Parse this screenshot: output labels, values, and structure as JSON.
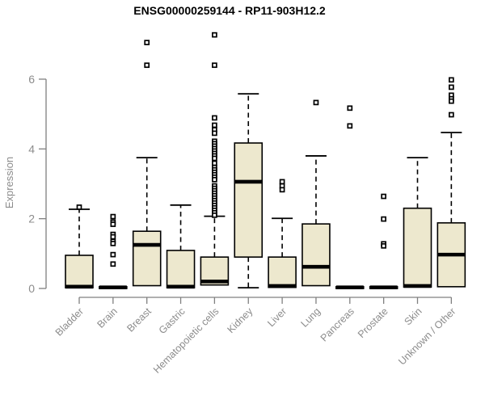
{
  "chart_data": {
    "type": "boxplot",
    "title": "ENSG00000259144 - RP11-903H12.2",
    "ylabel": "Expression",
    "xlabel": "",
    "ylim": [
      0,
      6
    ],
    "yticks": [
      0,
      2,
      4,
      6
    ],
    "grid": false,
    "legend": "none",
    "categories": [
      "Bladder",
      "Brain",
      "Breast",
      "Gastric",
      "Hematopoietic cells",
      "Kidney",
      "Liver",
      "Lung",
      "Pancreas",
      "Prostate",
      "Skin",
      "Unknown / Other"
    ],
    "series": [
      {
        "name": "Bladder",
        "q1": 0.02,
        "median": 0.05,
        "q3": 0.95,
        "whisker_low": 0.02,
        "whisker_high": 2.27,
        "outliers": [
          2.33
        ]
      },
      {
        "name": "Brain",
        "q1": 0.0,
        "median": 0.03,
        "q3": 0.05,
        "whisker_low": 0.0,
        "whisker_high": 0.05,
        "outliers": [
          2.06,
          1.9,
          1.84,
          1.55,
          1.48,
          1.35,
          1.29,
          0.97,
          0.7
        ]
      },
      {
        "name": "Breast",
        "q1": 0.08,
        "median": 1.25,
        "q3": 1.64,
        "whisker_low": 0.08,
        "whisker_high": 3.75,
        "outliers": [
          7.05,
          6.4
        ]
      },
      {
        "name": "Gastric",
        "q1": 0.02,
        "median": 0.05,
        "q3": 1.09,
        "whisker_low": 0.02,
        "whisker_high": 2.39,
        "outliers": []
      },
      {
        "name": "Hematopoietic cells",
        "q1": 0.1,
        "median": 0.2,
        "q3": 0.9,
        "whisker_low": 0.1,
        "whisker_high": 2.07,
        "outliers": [
          7.27,
          6.4,
          4.89,
          4.68,
          4.55,
          4.45,
          4.22,
          4.15,
          4.08,
          4.01,
          3.94,
          3.87,
          3.8,
          3.73,
          3.59,
          3.47,
          3.4,
          3.33,
          3.26,
          3.19,
          3.12,
          2.94,
          2.87,
          2.8,
          2.73,
          2.66,
          2.59,
          2.52,
          2.45,
          2.38,
          2.31,
          2.24,
          2.17,
          2.1
        ]
      },
      {
        "name": "Kidney",
        "q1": 0.9,
        "median": 3.06,
        "q3": 4.17,
        "whisker_low": 0.02,
        "whisker_high": 5.58,
        "outliers": []
      },
      {
        "name": "Liver",
        "q1": 0.03,
        "median": 0.07,
        "q3": 0.9,
        "whisker_low": 0.03,
        "whisker_high": 2.01,
        "outliers": [
          3.06,
          2.94,
          2.83
        ]
      },
      {
        "name": "Lung",
        "q1": 0.08,
        "median": 0.62,
        "q3": 1.85,
        "whisker_low": 0.08,
        "whisker_high": 3.8,
        "outliers": [
          5.33
        ]
      },
      {
        "name": "Pancreas",
        "q1": 0.0,
        "median": 0.03,
        "q3": 0.05,
        "whisker_low": 0.0,
        "whisker_high": 0.05,
        "outliers": [
          5.17,
          4.66
        ]
      },
      {
        "name": "Prostate",
        "q1": 0.0,
        "median": 0.03,
        "q3": 0.05,
        "whisker_low": 0.0,
        "whisker_high": 0.05,
        "outliers": [
          2.64,
          1.99,
          1.28,
          1.22
        ]
      },
      {
        "name": "Skin",
        "q1": 0.04,
        "median": 0.07,
        "q3": 2.3,
        "whisker_low": 0.04,
        "whisker_high": 3.75,
        "outliers": []
      },
      {
        "name": "Unknown / Other",
        "q1": 0.05,
        "median": 0.97,
        "q3": 1.88,
        "whisker_low": 0.05,
        "whisker_high": 4.47,
        "outliers": [
          5.98,
          5.77,
          5.54,
          5.44,
          5.37,
          4.98
        ]
      }
    ],
    "colors": {
      "box_fill": "#EDE8CE",
      "box_stroke": "#000000",
      "median": "#000000",
      "whisker": "#000000",
      "outlier_stroke": "#000000",
      "outlier_fill": "#ffffff",
      "axis_line": "#808080",
      "axis_text": "#8c8c8c",
      "title": "#000000",
      "background": "#ffffff"
    }
  }
}
